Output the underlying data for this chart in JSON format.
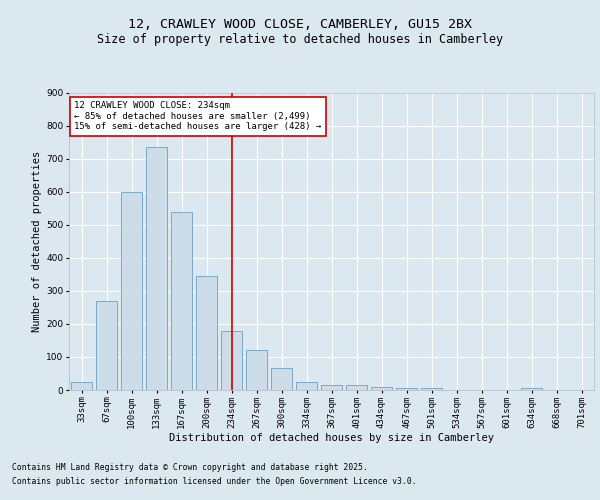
{
  "title1": "12, CRAWLEY WOOD CLOSE, CAMBERLEY, GU15 2BX",
  "title2": "Size of property relative to detached houses in Camberley",
  "xlabel": "Distribution of detached houses by size in Camberley",
  "ylabel": "Number of detached properties",
  "categories": [
    "33sqm",
    "67sqm",
    "100sqm",
    "133sqm",
    "167sqm",
    "200sqm",
    "234sqm",
    "267sqm",
    "300sqm",
    "334sqm",
    "367sqm",
    "401sqm",
    "434sqm",
    "467sqm",
    "501sqm",
    "534sqm",
    "567sqm",
    "601sqm",
    "634sqm",
    "668sqm",
    "701sqm"
  ],
  "values": [
    25,
    270,
    600,
    735,
    540,
    345,
    178,
    120,
    68,
    25,
    15,
    15,
    10,
    6,
    7,
    0,
    0,
    0,
    5,
    0,
    0
  ],
  "bar_color": "#ccdce8",
  "bar_edge_color": "#7aaac8",
  "vline_x": 6,
  "vline_color": "#cc0000",
  "annotation_text": "12 CRAWLEY WOOD CLOSE: 234sqm\n← 85% of detached houses are smaller (2,499)\n15% of semi-detached houses are larger (428) →",
  "annotation_box_color": "#ffffff",
  "annotation_box_edge": "#cc0000",
  "ylim": [
    0,
    900
  ],
  "yticks": [
    0,
    100,
    200,
    300,
    400,
    500,
    600,
    700,
    800,
    900
  ],
  "bg_color": "#dce8f0",
  "plot_bg_color": "#dce8f0",
  "footer1": "Contains HM Land Registry data © Crown copyright and database right 2025.",
  "footer2": "Contains public sector information licensed under the Open Government Licence v3.0.",
  "title1_fontsize": 9.5,
  "title2_fontsize": 8.5,
  "axis_fontsize": 7.5,
  "tick_fontsize": 6.5,
  "annot_fontsize": 6.5,
  "footer_fontsize": 5.8
}
